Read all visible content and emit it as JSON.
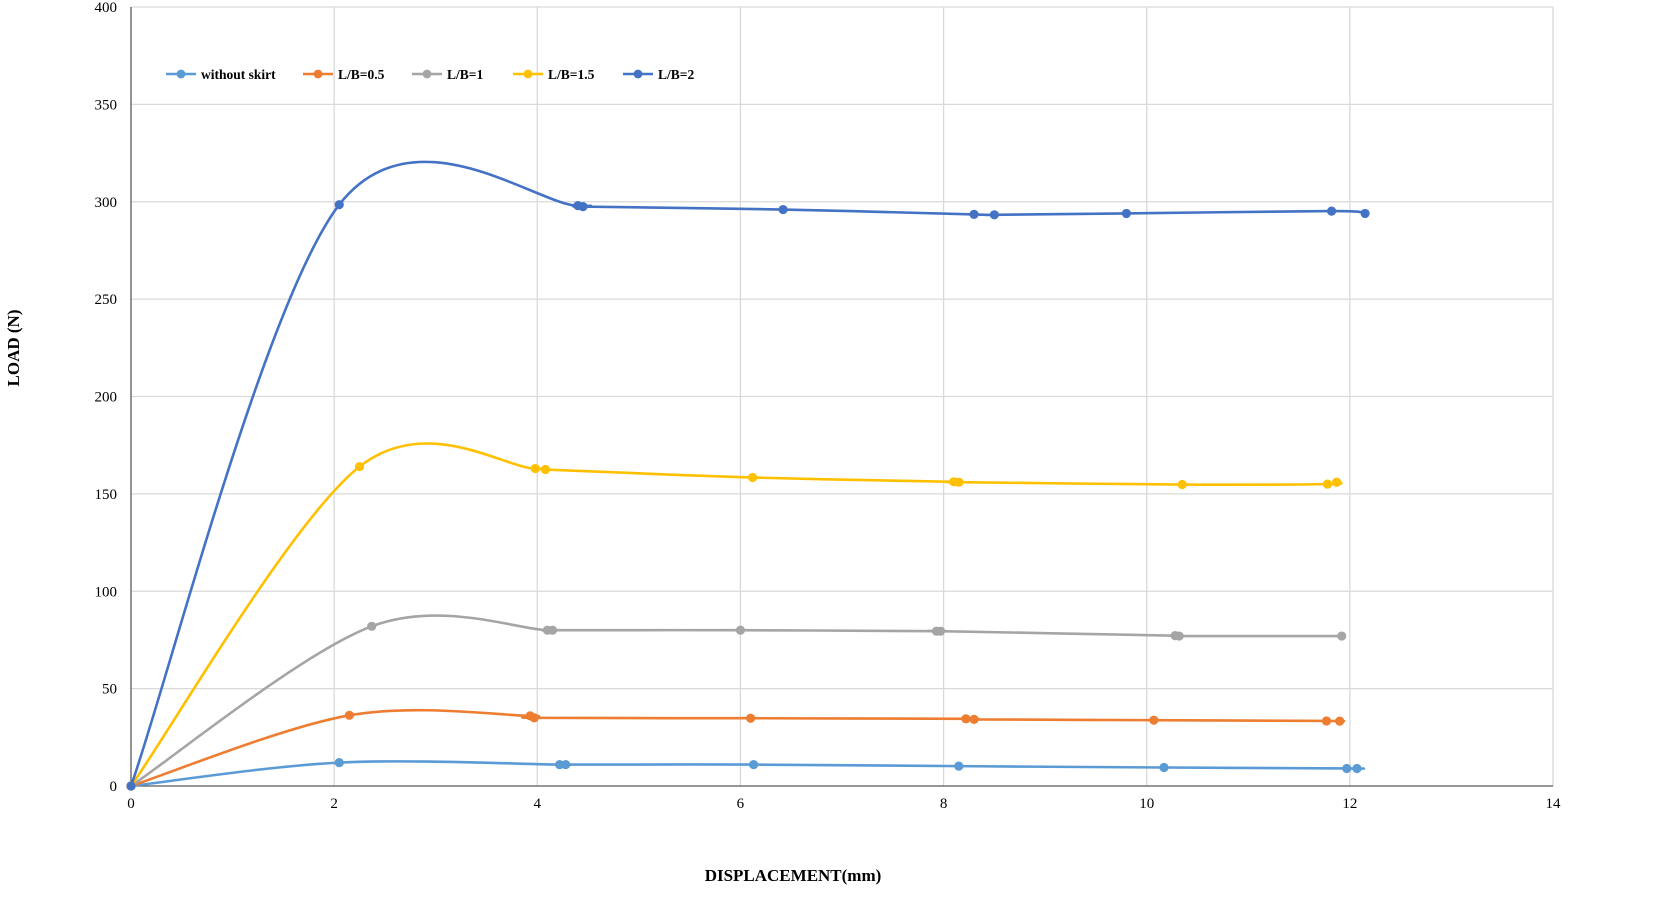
{
  "chart_data": {
    "type": "line",
    "title": "",
    "xlabel": "DISPLACEMENT(mm)",
    "ylabel": "LOAD (N)",
    "xlim": [
      0,
      14
    ],
    "ylim": [
      0,
      400
    ],
    "xticks": [
      0,
      2,
      4,
      6,
      8,
      10,
      12,
      14
    ],
    "yticks": [
      0,
      50,
      100,
      150,
      200,
      250,
      300,
      350,
      400
    ],
    "grid": true,
    "legend_position": "top-left",
    "series": [
      {
        "name": "without skirt",
        "color": "#5B9BD5",
        "points": [
          [
            0,
            0
          ],
          [
            2.05,
            12
          ],
          [
            4.22,
            11
          ],
          [
            4.28,
            11
          ],
          [
            6.13,
            11
          ],
          [
            8.15,
            10.2
          ],
          [
            10.17,
            9.5
          ],
          [
            11.97,
            9
          ],
          [
            12.07,
            9
          ]
        ]
      },
      {
        "name": "L/B=0.5",
        "color": "#ED7D31",
        "points": [
          [
            0,
            0
          ],
          [
            2.15,
            36.3
          ],
          [
            3.93,
            36
          ],
          [
            3.97,
            35
          ],
          [
            6.1,
            34.8
          ],
          [
            8.22,
            34.5
          ],
          [
            8.3,
            34.2
          ],
          [
            10.07,
            33.8
          ],
          [
            11.77,
            33.4
          ],
          [
            11.9,
            33.3
          ]
        ]
      },
      {
        "name": "L/B=1",
        "color": "#A5A5A5",
        "points": [
          [
            0,
            0
          ],
          [
            2.37,
            82
          ],
          [
            4.1,
            80
          ],
          [
            4.15,
            80
          ],
          [
            6.0,
            80
          ],
          [
            7.93,
            79.5
          ],
          [
            7.97,
            79.5
          ],
          [
            10.28,
            77.2
          ],
          [
            10.32,
            77
          ],
          [
            11.92,
            77
          ]
        ]
      },
      {
        "name": "L/B=1.5",
        "color": "#FFC000",
        "points": [
          [
            0,
            0
          ],
          [
            2.25,
            164
          ],
          [
            3.98,
            163
          ],
          [
            4.08,
            162.5
          ],
          [
            6.12,
            158.4
          ],
          [
            8.1,
            156.2
          ],
          [
            8.15,
            156
          ],
          [
            10.35,
            154.8
          ],
          [
            11.78,
            155
          ],
          [
            11.87,
            156
          ]
        ]
      },
      {
        "name": "L/B=2",
        "color": "#4472C4",
        "points": [
          [
            0,
            0
          ],
          [
            2.05,
            298.5
          ],
          [
            4.4,
            298
          ],
          [
            4.45,
            297.5
          ],
          [
            6.42,
            296
          ],
          [
            8.3,
            293.5
          ],
          [
            8.5,
            293.3
          ],
          [
            9.8,
            294
          ],
          [
            11.82,
            295.2
          ],
          [
            12.15,
            294
          ]
        ]
      }
    ]
  }
}
